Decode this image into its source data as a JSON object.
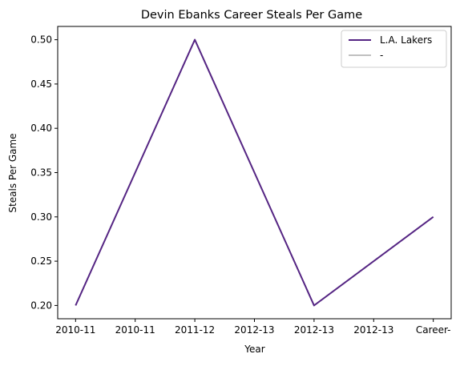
{
  "chart_data": {
    "type": "line",
    "title": "Devin Ebanks Career Steals Per Game",
    "xlabel": "Year",
    "ylabel": "Steals Per Game",
    "x_tick_labels": [
      "2010-11",
      "2010-11",
      "2011-12",
      "2012-13",
      "2012-13",
      "2012-13",
      "Career-"
    ],
    "y_ticks": [
      0.2,
      0.25,
      0.3,
      0.35,
      0.4,
      0.45,
      0.5
    ],
    "ylim": [
      0.185,
      0.515
    ],
    "grid": false,
    "legend_placement": "top-right",
    "series": [
      {
        "name": "L.A. Lakers",
        "color": "#552583",
        "points": [
          {
            "x": 0,
            "y": 0.2
          },
          {
            "x": 2,
            "y": 0.5
          },
          {
            "x": 4,
            "y": 0.2
          },
          {
            "x": 6,
            "y": 0.3
          }
        ]
      },
      {
        "name": "-",
        "color": "#c0c0c0",
        "points": []
      }
    ]
  }
}
